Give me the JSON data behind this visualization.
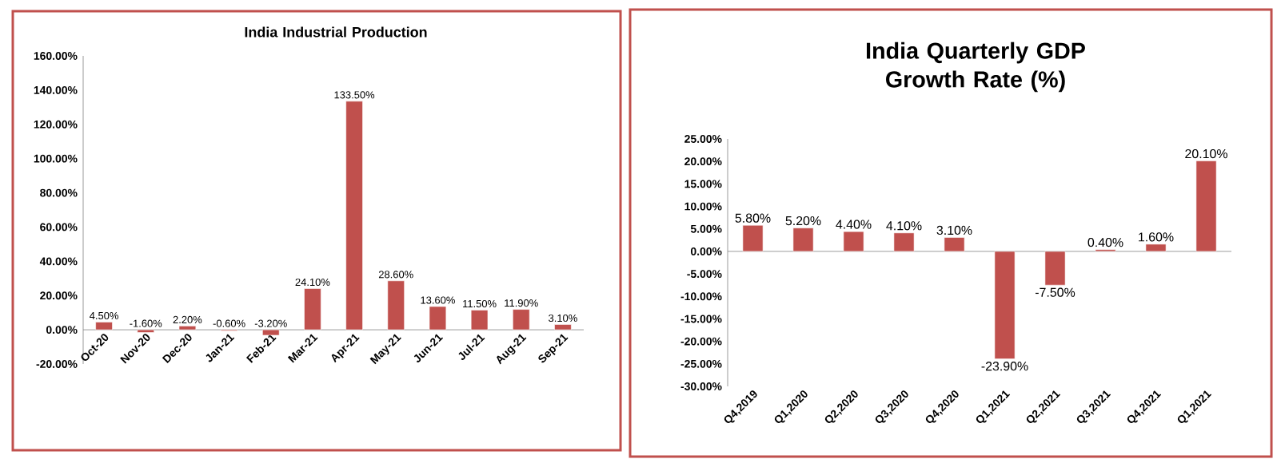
{
  "chart_data": [
    {
      "type": "bar",
      "title": "India Industrial Production",
      "color": "#c0504d",
      "categories": [
        "Oct-20",
        "Nov-20",
        "Dec-20",
        "Jan-21",
        "Feb-21",
        "Mar-21",
        "Apr-21",
        "May-21",
        "Jun-21",
        "Jul-21",
        "Aug-21",
        "Sep-21"
      ],
      "values": [
        4.5,
        -1.6,
        2.2,
        -0.6,
        -3.2,
        24.1,
        133.5,
        28.6,
        13.6,
        11.5,
        11.9,
        3.1
      ],
      "value_labels": [
        "4.50%",
        "-1.60%",
        "2.20%",
        "-0.60%",
        "-3.20%",
        "24.10%",
        "133.50%",
        "28.60%",
        "13.60%",
        "11.50%",
        "11.90%",
        "3.10%"
      ],
      "ylim": [
        -20,
        160
      ],
      "yticks": [
        {
          "value": -20,
          "label": "-20.00%"
        },
        {
          "value": 0,
          "label": "0.00%"
        },
        {
          "value": 20,
          "label": "20.00%"
        },
        {
          "value": 40,
          "label": "40.00%"
        },
        {
          "value": 60,
          "label": "60.00%"
        },
        {
          "value": 80,
          "label": "80.00%"
        },
        {
          "value": 100,
          "label": "100.00%"
        },
        {
          "value": 120,
          "label": "120.00%"
        },
        {
          "value": 140,
          "label": "140.00%"
        },
        {
          "value": 160,
          "label": "160.00%"
        }
      ]
    },
    {
      "type": "bar",
      "title": "India Quarterly GDP Growth Rate (%)",
      "color": "#c0504d",
      "categories": [
        "Q4,2019",
        "Q1,2020",
        "Q2,2020",
        "Q3,2020",
        "Q4,2020",
        "Q1,2021",
        "Q2,2021",
        "Q3,2021",
        "Q4,2021",
        "Q1,2021"
      ],
      "values": [
        5.8,
        5.2,
        4.4,
        4.1,
        3.1,
        -23.9,
        -7.5,
        0.4,
        1.6,
        20.1
      ],
      "value_labels": [
        "5.80%",
        "5.20%",
        "4.40%",
        "4.10%",
        "3.10%",
        "-23.90%",
        "-7.50%",
        "0.40%",
        "1.60%",
        "20.10%"
      ],
      "ylim": [
        -30,
        25
      ],
      "yticks": [
        {
          "value": -30,
          "label": "-30.00%"
        },
        {
          "value": -25,
          "label": "-25.00%"
        },
        {
          "value": -20,
          "label": "-20.00%"
        },
        {
          "value": -15,
          "label": "-15.00%"
        },
        {
          "value": -10,
          "label": "-10.00%"
        },
        {
          "value": -5,
          "label": "-5.00%"
        },
        {
          "value": 0,
          "label": "0.00%"
        },
        {
          "value": 5,
          "label": "5.00%"
        },
        {
          "value": 10,
          "label": "10.00%"
        },
        {
          "value": 15,
          "label": "15.00%"
        },
        {
          "value": 20,
          "label": "20.00%"
        },
        {
          "value": 25,
          "label": "25.00%"
        }
      ]
    }
  ]
}
